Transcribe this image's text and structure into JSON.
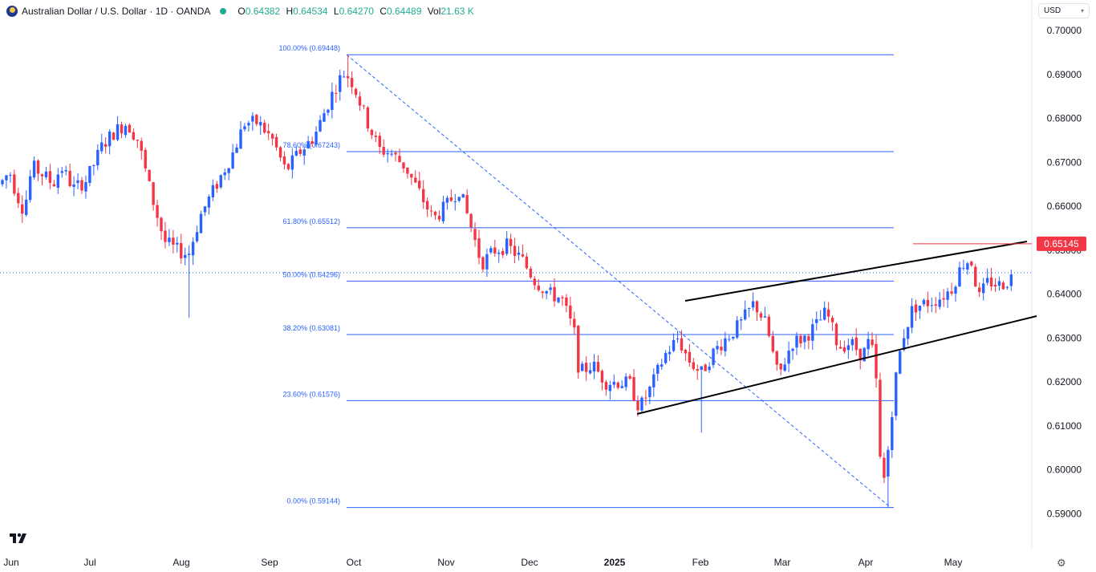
{
  "header": {
    "title": "Australian Dollar / U.S. Dollar · 1D · OANDA",
    "open_label": "O",
    "open": "0.64382",
    "high_label": "H",
    "high": "0.64534",
    "low_label": "L",
    "low": "0.64270",
    "close_label": "C",
    "close": "0.64489",
    "vol_label": "Vol",
    "vol": "21.63 K"
  },
  "currency": {
    "label": "USD"
  },
  "colors": {
    "up": "#2962ff",
    "down": "#f23645",
    "fib": "#2962ff",
    "trend": "#000000",
    "marker": "#f23645"
  },
  "chart_data": {
    "type": "candlestick",
    "title": "Australian Dollar / U.S. Dollar · 1D · OANDA",
    "ylim": [
      0.5835,
      0.7065
    ],
    "y_ticks": [
      "0.70000",
      "0.69000",
      "0.68000",
      "0.67000",
      "0.66000",
      "0.65000",
      "0.64000",
      "0.63000",
      "0.62000",
      "0.61000",
      "0.60000",
      "0.59000"
    ],
    "x_ticks": [
      "Jun",
      "Jul",
      "Aug",
      "Sep",
      "Oct",
      "Nov",
      "Dec",
      "2025",
      "Feb",
      "Mar",
      "Apr",
      "May"
    ],
    "price_marker": "0.65145",
    "current_price": 0.64489,
    "fib_levels": [
      {
        "label": "100.00% (0.69448)",
        "value": 0.69448
      },
      {
        "label": "78.60% (0.67243)",
        "value": 0.67243
      },
      {
        "label": "61.80% (0.65512)",
        "value": 0.65512
      },
      {
        "label": "50.00% (0.64296)",
        "value": 0.64296
      },
      {
        "label": "38.20% (0.63081)",
        "value": 0.63081
      },
      {
        "label": "23.60% (0.61576)",
        "value": 0.61576
      },
      {
        "label": "0.00% (0.59144)",
        "value": 0.59144
      }
    ],
    "price_anchors": [
      [
        0,
        0.665
      ],
      [
        12,
        0.668
      ],
      [
        20,
        0.663
      ],
      [
        30,
        0.659
      ],
      [
        40,
        0.669
      ],
      [
        55,
        0.667
      ],
      [
        66,
        0.665
      ],
      [
        76,
        0.669
      ],
      [
        92,
        0.664
      ],
      [
        108,
        0.666
      ],
      [
        128,
        0.674
      ],
      [
        143,
        0.677
      ],
      [
        158,
        0.679
      ],
      [
        172,
        0.675
      ],
      [
        188,
        0.663
      ],
      [
        205,
        0.652
      ],
      [
        220,
        0.65
      ],
      [
        235,
        0.649
      ],
      [
        250,
        0.658
      ],
      [
        270,
        0.665
      ],
      [
        290,
        0.672
      ],
      [
        305,
        0.679
      ],
      [
        322,
        0.679
      ],
      [
        340,
        0.675
      ],
      [
        356,
        0.668
      ],
      [
        372,
        0.672
      ],
      [
        392,
        0.676
      ],
      [
        408,
        0.683
      ],
      [
        420,
        0.688
      ],
      [
        430,
        0.6905
      ],
      [
        440,
        0.688
      ],
      [
        456,
        0.68
      ],
      [
        472,
        0.673
      ],
      [
        488,
        0.672
      ],
      [
        505,
        0.669
      ],
      [
        520,
        0.664
      ],
      [
        540,
        0.657
      ],
      [
        556,
        0.66
      ],
      [
        572,
        0.664
      ],
      [
        586,
        0.656
      ],
      [
        600,
        0.647
      ],
      [
        617,
        0.65
      ],
      [
        632,
        0.651
      ],
      [
        650,
        0.648
      ],
      [
        667,
        0.643
      ],
      [
        685,
        0.64
      ],
      [
        700,
        0.639
      ],
      [
        716,
        0.631
      ],
      [
        722,
        0.622
      ],
      [
        738,
        0.624
      ],
      [
        755,
        0.62
      ],
      [
        772,
        0.62
      ],
      [
        785,
        0.6195
      ],
      [
        797,
        0.614
      ],
      [
        812,
        0.619
      ],
      [
        828,
        0.626
      ],
      [
        845,
        0.63
      ],
      [
        858,
        0.625
      ],
      [
        874,
        0.622
      ],
      [
        890,
        0.627
      ],
      [
        905,
        0.63
      ],
      [
        922,
        0.633
      ],
      [
        940,
        0.638
      ],
      [
        955,
        0.633
      ],
      [
        970,
        0.621
      ],
      [
        987,
        0.629
      ],
      [
        1002,
        0.63
      ],
      [
        1018,
        0.633
      ],
      [
        1030,
        0.636
      ],
      [
        1045,
        0.628
      ],
      [
        1060,
        0.629
      ],
      [
        1075,
        0.626
      ],
      [
        1085,
        0.63
      ],
      [
        1092,
        0.62
      ],
      [
        1097,
        0.602
      ],
      [
        1103,
        0.597
      ],
      [
        1110,
        0.611
      ],
      [
        1118,
        0.623
      ],
      [
        1125,
        0.63
      ],
      [
        1138,
        0.637
      ],
      [
        1155,
        0.638
      ],
      [
        1170,
        0.639
      ],
      [
        1185,
        0.641
      ],
      [
        1200,
        0.647
      ],
      [
        1210,
        0.648
      ],
      [
        1220,
        0.639
      ],
      [
        1232,
        0.643
      ],
      [
        1245,
        0.642
      ],
      [
        1256,
        0.643
      ],
      [
        1265,
        0.6449
      ]
    ],
    "ohlc_note": "approximate daily series (Jun 2024 – May 2025)"
  }
}
